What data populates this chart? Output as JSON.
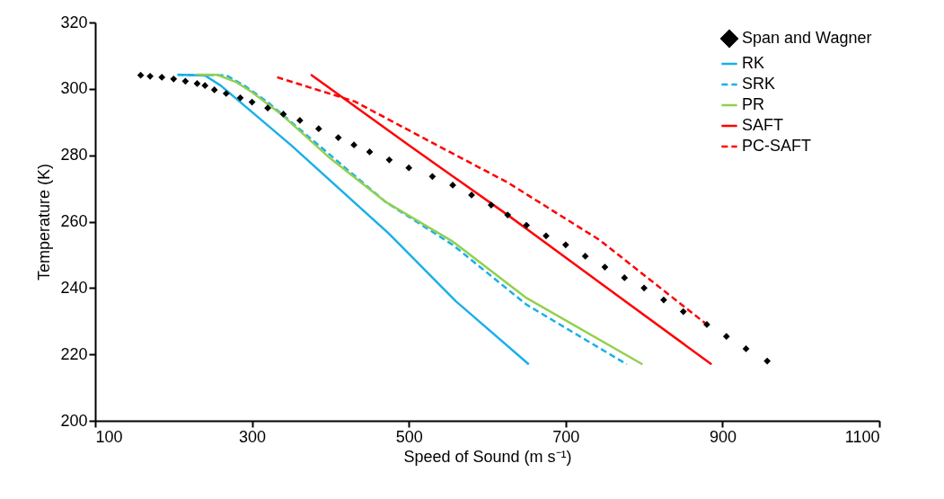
{
  "chart_data": {
    "type": "line",
    "xlabel": "Speed of Sound (m s⁻¹)",
    "ylabel": "Temperature (K)",
    "xlim": [
      100,
      1100
    ],
    "xticks": [
      100,
      300,
      500,
      700,
      900,
      1100
    ],
    "ylim": [
      200,
      320
    ],
    "yticks": [
      200,
      220,
      240,
      260,
      280,
      300,
      320
    ],
    "grid": false,
    "legend": "top right",
    "series": [
      {
        "name": "Span and Wagner",
        "type": "scatter",
        "marker": "diamond",
        "color": "#000000",
        "x": [
          158,
          170,
          185,
          200,
          215,
          230,
          240,
          252,
          267,
          285,
          300,
          320,
          340,
          361,
          385,
          410,
          430,
          450,
          475,
          500,
          530,
          556,
          580,
          605,
          626,
          650,
          675,
          700,
          725,
          750,
          775,
          800,
          825,
          850,
          880,
          905,
          930,
          957
        ],
        "values": [
          304.1,
          303.8,
          303.5,
          303,
          302.3,
          301.6,
          301,
          299.7,
          298.6,
          297.3,
          296,
          294.2,
          292.4,
          290.5,
          288,
          285.3,
          283.1,
          281,
          278.6,
          276.2,
          273.6,
          271,
          268,
          265,
          262,
          258.9,
          255.7,
          253,
          249.6,
          246.3,
          243.1,
          240,
          236.4,
          232.9,
          229,
          225.4,
          221.7,
          218
        ]
      },
      {
        "name": "RK",
        "color": "#1ab0e8",
        "line_style": "solid",
        "x": [
          205,
          240,
          260,
          280,
          350,
          474,
          560,
          653
        ],
        "values": [
          304.3,
          304,
          301,
          297,
          283,
          256.5,
          236,
          217
        ]
      },
      {
        "name": "SRK",
        "color": "#1ab0e8",
        "line_style": "dashed",
        "x": [
          205,
          267,
          290,
          320,
          400,
          470,
          556,
          650,
          778
        ],
        "values": [
          304.2,
          304.1,
          301,
          296,
          280,
          266,
          253,
          235,
          217
        ]
      },
      {
        "name": "PR",
        "color": "#92d050",
        "line_style": "solid",
        "x": [
          229,
          256,
          280,
          300,
          337,
          400,
          470,
          556,
          650,
          798
        ],
        "values": [
          304.3,
          304.2,
          302,
          299,
          292.4,
          279,
          266,
          254,
          237,
          217
        ]
      },
      {
        "name": "SAFT",
        "color": "#ff0000",
        "line_style": "solid",
        "x": [
          375,
          500,
          626,
          750,
          886
        ],
        "values": [
          304.3,
          283,
          262,
          240.5,
          217
        ]
      },
      {
        "name": "PC-SAFT",
        "color": "#ff0000",
        "line_style": "dashed",
        "x": [
          332,
          431,
          520,
          626,
          743,
          880
        ],
        "values": [
          303.5,
          296.2,
          285,
          271.8,
          254.5,
          229
        ]
      }
    ]
  }
}
